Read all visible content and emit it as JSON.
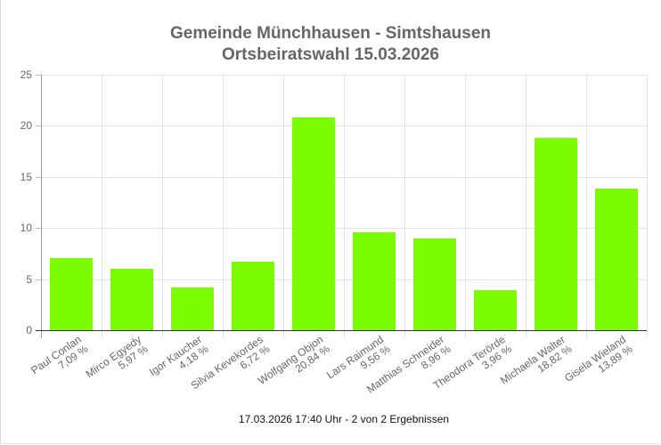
{
  "chart_data": {
    "type": "bar",
    "title": "Gemeinde Münchhausen - Simtshausen",
    "subtitle": "Ortsbeiratswahl 15.03.2026",
    "xlabel": "",
    "ylabel": "",
    "ylim": [
      0,
      25
    ],
    "yticks": [
      0,
      5,
      10,
      15,
      20,
      25
    ],
    "grid": true,
    "legend": "none",
    "bar_color": "#7cfc00",
    "categories": [
      "Paul Conlan",
      "Mirco Egyedy",
      "Igor Kaucher",
      "Silvia Kevekordes",
      "Wolfgang Objon",
      "Lars Raimund",
      "Matthias Schneider",
      "Theodora Terörde",
      "Michaela Walter",
      "Gisela Wieland"
    ],
    "values": [
      7.09,
      5.97,
      4.18,
      6.72,
      20.84,
      9.56,
      8.96,
      3.96,
      18.82,
      13.89
    ],
    "value_labels": [
      "7,09 %",
      "5,97 %",
      "4,18 %",
      "6,72 %",
      "20,84 %",
      "9,56 %",
      "8,96 %",
      "3,96 %",
      "18,82 %",
      "13,89 %"
    ]
  },
  "footer": "17.03.2026 17:40 Uhr - 2 von 2 Ergebnissen"
}
